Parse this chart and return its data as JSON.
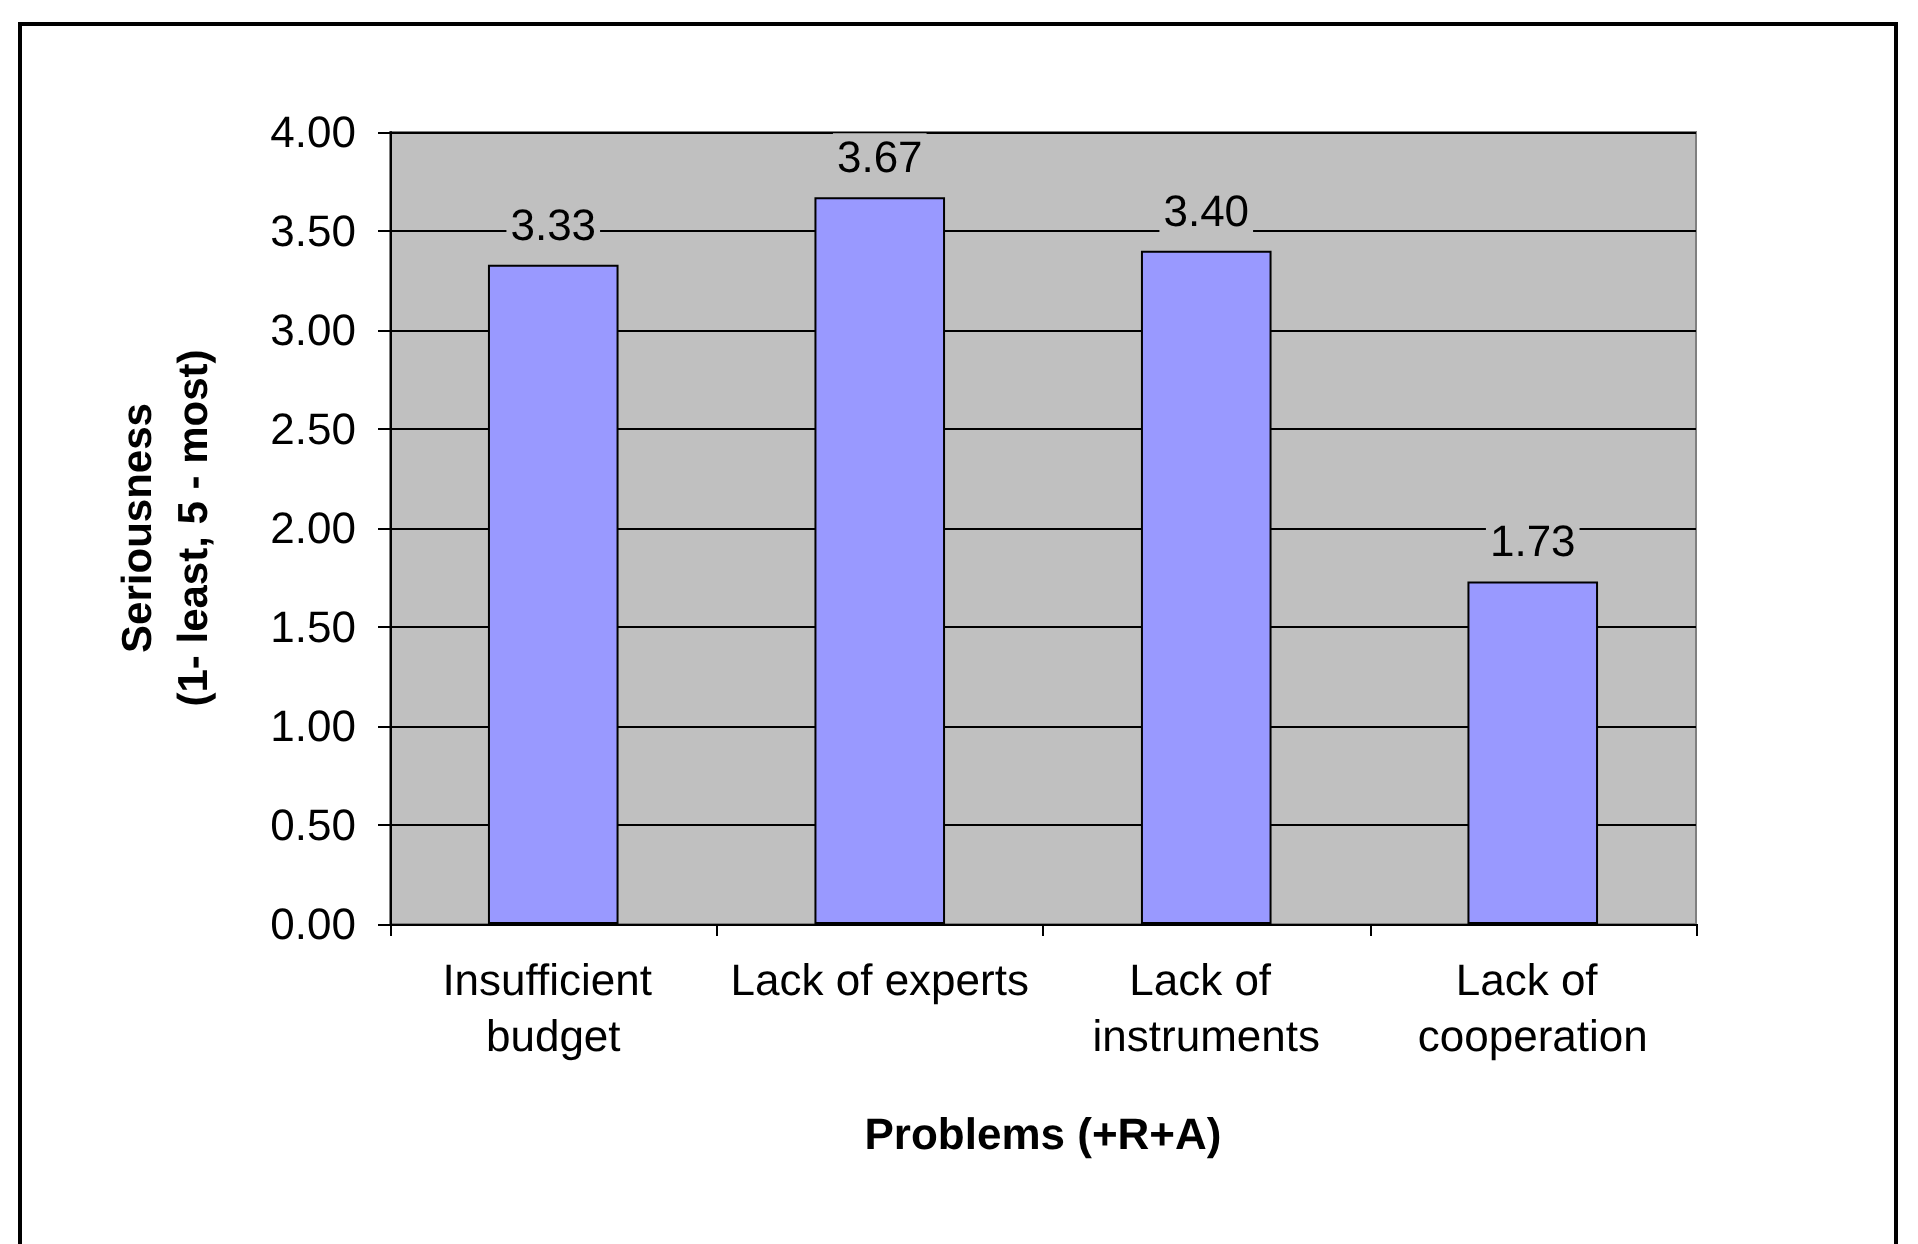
{
  "chart_data": {
    "type": "bar",
    "xlabel": "Problems (+R+A)",
    "ylabel": "Seriousness\n(1- least, 5 - most)",
    "categories": [
      "Insufficient budget",
      "Lack of experts",
      "Lack of instruments",
      "Lack of cooperation"
    ],
    "values": [
      3.33,
      3.67,
      3.4,
      1.73
    ],
    "color": "#9999ff",
    "value_labels": [
      "3.33",
      "3.67",
      "3.40",
      "1.73"
    ],
    "ylim": [
      0,
      4
    ],
    "yticks": [
      {
        "value": 0,
        "label": "0.00"
      },
      {
        "value": 0.5,
        "label": "0.50"
      },
      {
        "value": 1,
        "label": "1.00"
      },
      {
        "value": 1.5,
        "label": "1.50"
      },
      {
        "value": 2,
        "label": "2.00"
      },
      {
        "value": 2.5,
        "label": "2.50"
      },
      {
        "value": 3,
        "label": "3.00"
      },
      {
        "value": 3.5,
        "label": "3.50"
      },
      {
        "value": 4,
        "label": "4.00"
      }
    ],
    "grid": "y"
  }
}
